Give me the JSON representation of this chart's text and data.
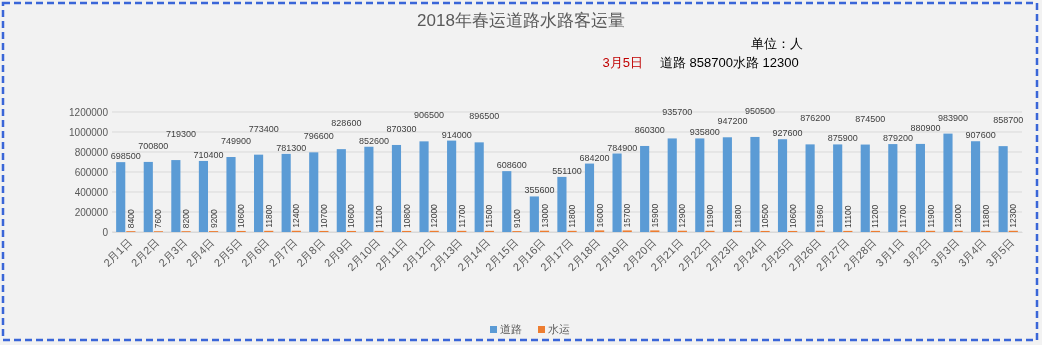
{
  "chart_data": {
    "type": "bar",
    "title": "2018年春运道路水路客运量",
    "annotations": [
      "单位：人",
      "3月5日",
      "道路 858700水路 12300"
    ],
    "categories": [
      "2月1日",
      "2月2日",
      "2月3日",
      "2月4日",
      "2月5日",
      "2月6日",
      "2月7日",
      "2月8日",
      "2月9日",
      "2月10日",
      "2月11日",
      "2月12日",
      "2月13日",
      "2月14日",
      "2月15日",
      "2月16日",
      "2月17日",
      "2月18日",
      "2月19日",
      "2月20日",
      "2月21日",
      "2月22日",
      "2月23日",
      "2月24日",
      "2月25日",
      "2月26日",
      "2月27日",
      "2月28日",
      "3月1日",
      "3月2日",
      "3月3日",
      "3月4日",
      "3月5日"
    ],
    "series": [
      {
        "name": "道路",
        "color": "#5b9bd5",
        "values": [
          698500,
          700800,
          719300,
          710400,
          749900,
          773400,
          781300,
          796600,
          828600,
          852600,
          870300,
          906500,
          914000,
          896500,
          608600,
          355600,
          551100,
          684200,
          784900,
          860300,
          935700,
          935800,
          947200,
          950500,
          927600,
          876200,
          875900,
          874500,
          879200,
          880900,
          983900,
          907600,
          858700
        ]
      },
      {
        "name": "水运",
        "color": "#ed7d31",
        "values": [
          8400,
          7600,
          8200,
          9200,
          10600,
          11800,
          12400,
          10700,
          10600,
          11100,
          10800,
          12000,
          11700,
          11500,
          9100,
          13000,
          11800,
          16000,
          15700,
          15900,
          12900,
          11900,
          11800,
          10500,
          10600,
          11960,
          11100,
          11200,
          11700,
          11900,
          12000,
          11800,
          12300
        ]
      }
    ],
    "ylim": [
      0,
      1200000
    ],
    "yticks": [
      0,
      200000,
      400000,
      600000,
      800000,
      1000000,
      1200000
    ],
    "grid": "y",
    "legend": "bottom",
    "data_labels": true
  }
}
